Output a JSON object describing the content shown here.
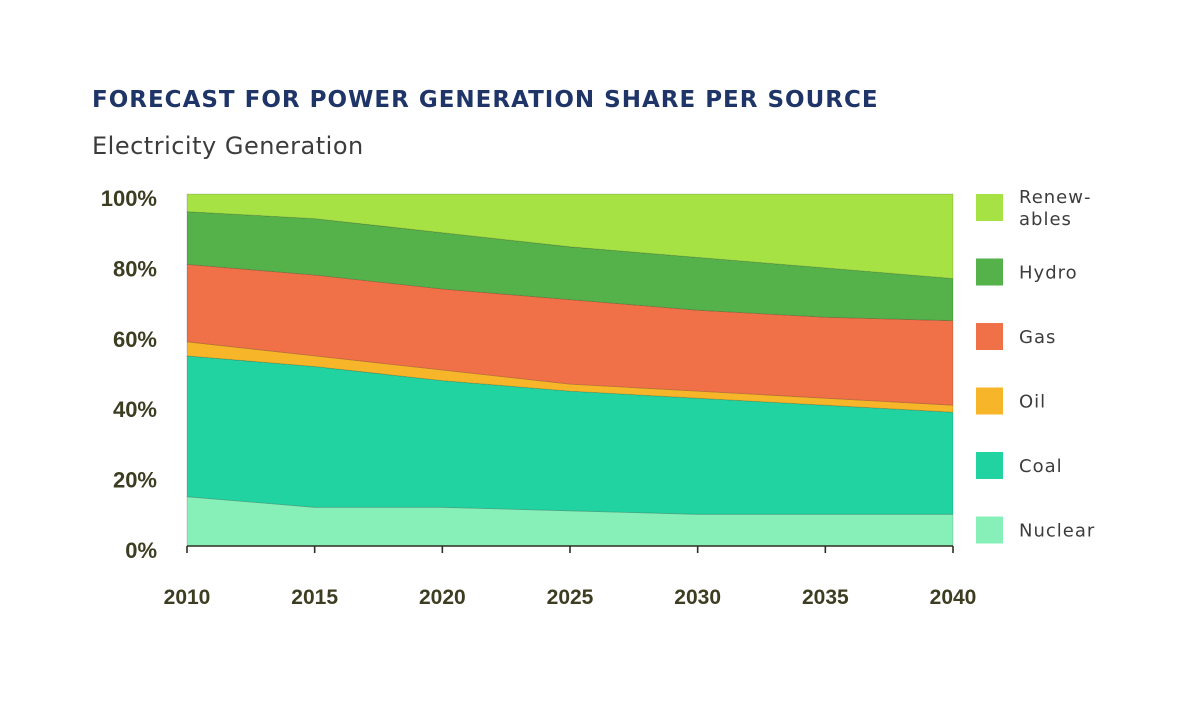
{
  "chart_data": {
    "type": "area",
    "stacked": true,
    "title": "FORECAST FOR POWER GENERATION SHARE PER SOURCE",
    "subtitle": "Electricity Generation",
    "xlabel": "",
    "ylabel": "",
    "x": [
      "2010",
      "2015",
      "2020",
      "2025",
      "2030",
      "2035",
      "2040"
    ],
    "ylim": [
      0,
      100
    ],
    "yticks": [
      "0%",
      "20%",
      "40%",
      "60%",
      "80%",
      "100%"
    ],
    "legend_position": "right",
    "series": [
      {
        "name": "Nuclear",
        "color": "#86f0b8",
        "values": [
          14,
          11,
          11,
          10,
          9,
          9,
          9
        ]
      },
      {
        "name": "Coal",
        "color": "#22d3a2",
        "values": [
          40,
          40,
          36,
          34,
          33,
          31,
          29
        ]
      },
      {
        "name": "Oil",
        "color": "#f7b52a",
        "values": [
          4,
          3,
          3,
          2,
          2,
          2,
          2
        ]
      },
      {
        "name": "Gas",
        "color": "#f07048",
        "values": [
          22,
          23,
          23,
          24,
          23,
          23,
          24
        ]
      },
      {
        "name": "Hydro",
        "color": "#55b24a",
        "values": [
          15,
          16,
          16,
          15,
          15,
          14,
          12
        ]
      },
      {
        "name": "Renewables",
        "color": "#a6e244",
        "values": [
          5,
          7,
          11,
          15,
          18,
          21,
          24
        ]
      }
    ],
    "legend": [
      {
        "label_lines": [
          "Renew-",
          "ables"
        ],
        "series": "Renewables"
      },
      {
        "label_lines": [
          "Hydro"
        ],
        "series": "Hydro"
      },
      {
        "label_lines": [
          "Gas"
        ],
        "series": "Gas"
      },
      {
        "label_lines": [
          "Oil"
        ],
        "series": "Oil"
      },
      {
        "label_lines": [
          "Coal"
        ],
        "series": "Coal"
      },
      {
        "label_lines": [
          "Nuclear"
        ],
        "series": "Nuclear"
      }
    ]
  }
}
